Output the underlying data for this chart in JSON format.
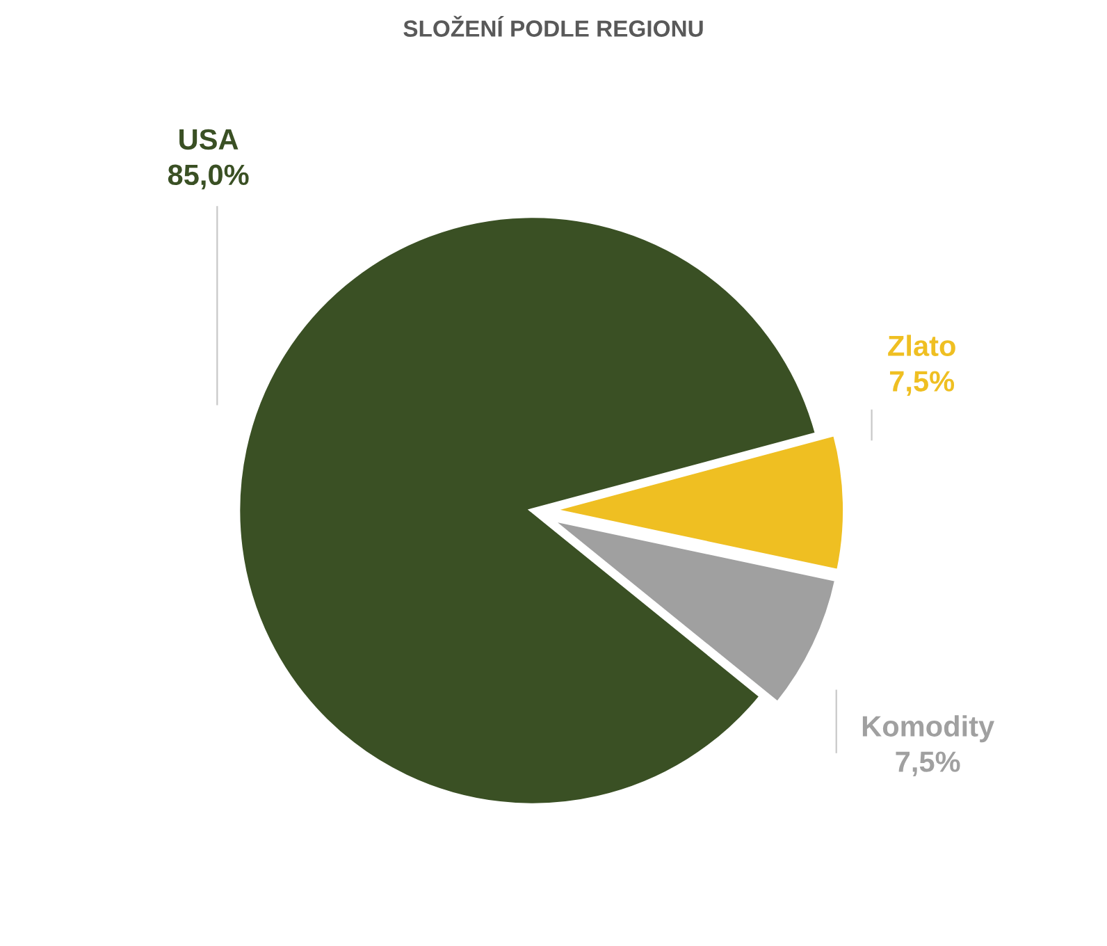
{
  "chart_data": {
    "type": "pie",
    "title": "SLOŽENÍ PODLE REGIONU",
    "categories": [
      "USA",
      "Zlato",
      "Komodity"
    ],
    "values": [
      85.0,
      7.5,
      7.5
    ],
    "value_labels": [
      "85,0%",
      "7,5%",
      "7,5%"
    ],
    "colors": [
      "#3a5024",
      "#efbf22",
      "#a0a0a0"
    ],
    "legend": false
  }
}
